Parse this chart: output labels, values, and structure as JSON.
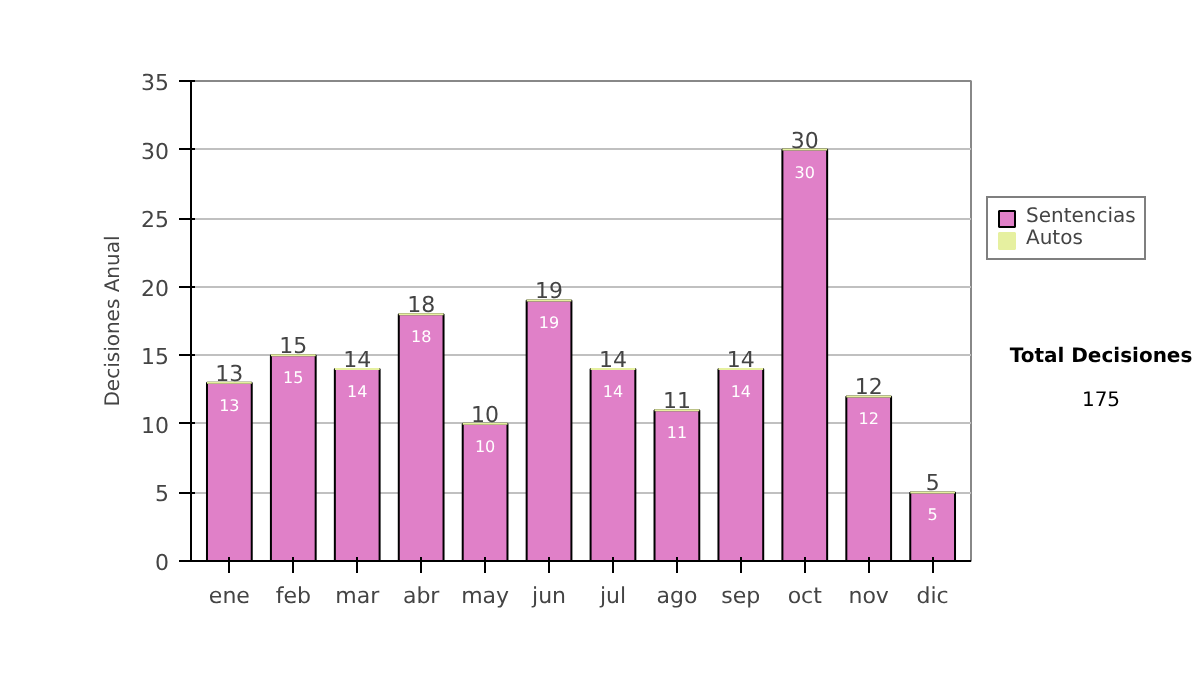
{
  "chart_data": {
    "type": "bar",
    "stacked": true,
    "ylabel": "Decisiones Anual",
    "categories": [
      "ene",
      "feb",
      "mar",
      "abr",
      "may",
      "jun",
      "jul",
      "ago",
      "sep",
      "oct",
      "nov",
      "dic"
    ],
    "series": [
      {
        "name": "Sentencias",
        "color": "#e080c8",
        "values": [
          13,
          15,
          14,
          18,
          10,
          19,
          14,
          11,
          14,
          30,
          12,
          5
        ],
        "value_labels": [
          "13",
          "15",
          "14",
          "18",
          "10",
          "19",
          "14",
          "11",
          "14",
          "30",
          "12",
          "5"
        ]
      },
      {
        "name": "Autos",
        "color": "#e6f0a0",
        "values": [
          0,
          0,
          0,
          0,
          0,
          0,
          0,
          0,
          0,
          0,
          0,
          0
        ]
      }
    ],
    "totals": [
      "13",
      "15",
      "14",
      "18",
      "10",
      "19",
      "14",
      "11",
      "14",
      "30",
      "12",
      "5"
    ],
    "ylim": [
      0,
      35
    ],
    "yticks": [
      0,
      5,
      10,
      15,
      20,
      25,
      30,
      35
    ],
    "grid": "y",
    "legend": "right",
    "annotations": [
      "Total Decisiones",
      "175"
    ]
  }
}
